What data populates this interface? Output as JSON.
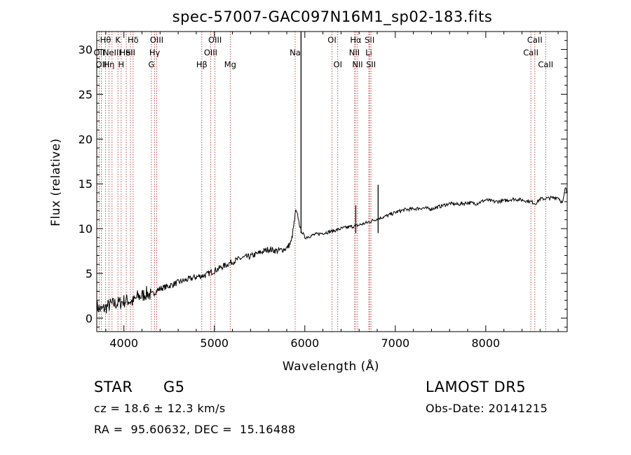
{
  "chart_data": {
    "type": "line",
    "title": "spec-57007-GAC097N16M1_sp02-183.fits",
    "xlabel": "Wavelength (Å)",
    "ylabel": "Flux (relative)",
    "xlim": [
      3700,
      8900
    ],
    "ylim": [
      -1.5,
      32
    ],
    "x_ticks": [
      4000,
      5000,
      6000,
      7000,
      8000
    ],
    "y_ticks": [
      0,
      5,
      10,
      15,
      20,
      25,
      30
    ],
    "grid": false,
    "series": [
      {
        "color": "#000000",
        "x": [
          3700,
          3750,
          3800,
          3850,
          3900,
          3950,
          4000,
          4050,
          4100,
          4150,
          4200,
          4250,
          4300,
          4400,
          4500,
          4600,
          4700,
          4800,
          4900,
          5000,
          5100,
          5200,
          5300,
          5400,
          5500,
          5600,
          5700,
          5800,
          5850,
          5880,
          5900,
          5920,
          5950,
          6000,
          6100,
          6200,
          6300,
          6400,
          6500,
          6563,
          6600,
          6700,
          6800,
          6900,
          7000,
          7100,
          7200,
          7300,
          7400,
          7500,
          7600,
          7700,
          7800,
          7900,
          8000,
          8100,
          8200,
          8300,
          8400,
          8500,
          8550,
          8600,
          8700,
          8800,
          8850,
          8880,
          8900
        ],
        "y": [
          1.3,
          0.9,
          1.2,
          1.5,
          1.6,
          1.7,
          1.9,
          2.0,
          1.8,
          2.4,
          2.5,
          2.8,
          2.6,
          3.3,
          3.6,
          4.0,
          4.3,
          4.6,
          4.8,
          5.3,
          5.8,
          6.3,
          6.7,
          6.9,
          7.3,
          7.7,
          7.5,
          7.8,
          8.5,
          10.5,
          12.0,
          11.5,
          10.0,
          9.0,
          9.3,
          9.5,
          9.7,
          10.0,
          10.2,
          10.3,
          10.4,
          10.7,
          11.1,
          11.4,
          11.8,
          12.1,
          12.2,
          12.3,
          12.2,
          12.5,
          12.8,
          12.7,
          12.9,
          12.8,
          13.2,
          13.0,
          13.1,
          13.3,
          13.2,
          13.0,
          12.8,
          13.3,
          13.4,
          13.5,
          12.8,
          14.6,
          13.9
        ]
      }
    ],
    "spikes": [
      {
        "x": 5958,
        "y": 32
      },
      {
        "x": 6563,
        "y": 12.6
      },
      {
        "x": 6810,
        "y": 14.9
      }
    ],
    "lines": [
      {
        "x": 3727,
        "label": "OII",
        "row": 1,
        "shift": 0
      },
      {
        "x": 3750,
        "label": "OII",
        "row": 2,
        "shift": 0
      },
      {
        "x": 3797,
        "label": "Hθ",
        "row": 0,
        "shift": 0
      },
      {
        "x": 3835,
        "label": "Hη",
        "row": 2,
        "shift": 0
      },
      {
        "x": 3869,
        "label": "NeIII",
        "row": 1,
        "shift": 0
      },
      {
        "x": 3934,
        "label": "K",
        "row": 0,
        "shift": 0
      },
      {
        "x": 3970,
        "label": "H",
        "row": 2,
        "shift": 0
      },
      {
        "x": 4026,
        "label": "HeI",
        "row": 1,
        "shift": 0
      },
      {
        "x": 4072,
        "label": "SII",
        "row": 1,
        "shift": 0
      },
      {
        "x": 4102,
        "label": "Hδ",
        "row": 0,
        "shift": 0
      },
      {
        "x": 4304,
        "label": "G",
        "row": 2,
        "shift": 0
      },
      {
        "x": 4340,
        "label": "Hγ",
        "row": 1,
        "shift": 0
      },
      {
        "x": 4363,
        "label": "OIII",
        "row": 0,
        "shift": 0
      },
      {
        "x": 4861,
        "label": "Hβ",
        "row": 2,
        "shift": 0
      },
      {
        "x": 4959,
        "label": "OIII",
        "row": 1,
        "shift": 0
      },
      {
        "x": 5007,
        "label": "OIII",
        "row": 0,
        "shift": 0
      },
      {
        "x": 5175,
        "label": "Mg",
        "row": 2,
        "shift": 0
      },
      {
        "x": 5893,
        "label": "Na",
        "row": 1,
        "shift": 0
      },
      {
        "x": 6300,
        "label": "OI",
        "row": 0,
        "shift": 0
      },
      {
        "x": 6364,
        "label": "OI",
        "row": 2,
        "shift": 0
      },
      {
        "x": 6548,
        "label": "NII",
        "row": 1,
        "shift": 0
      },
      {
        "x": 6563,
        "label": "Hα",
        "row": 0,
        "shift": 0
      },
      {
        "x": 6583,
        "label": "NII",
        "row": 2,
        "shift": 0
      },
      {
        "x": 6707,
        "label": "Li",
        "row": 1,
        "shift": 0
      },
      {
        "x": 6716,
        "label": "SII",
        "row": 0,
        "shift": 0
      },
      {
        "x": 6731,
        "label": "SII",
        "row": 2,
        "shift": 0
      },
      {
        "x": 8498,
        "label": "CaII",
        "row": 1,
        "shift": 0
      },
      {
        "x": 8542,
        "label": "CaII",
        "row": 0,
        "shift": 0
      },
      {
        "x": 8662,
        "label": "CaII",
        "row": 2,
        "shift": 0
      }
    ]
  },
  "info": {
    "class": "STAR",
    "subclass": "G5",
    "survey": "LAMOST DR5",
    "cz": "cz = 18.6 ± 12.3 km/s",
    "obs_date": "Obs-Date: 20141215",
    "coords": "RA =  95.60632, DEC =  15.16488"
  },
  "colors": {
    "spectrum": "#000000",
    "line_marker": "#b22222",
    "background": "#ffffff"
  }
}
